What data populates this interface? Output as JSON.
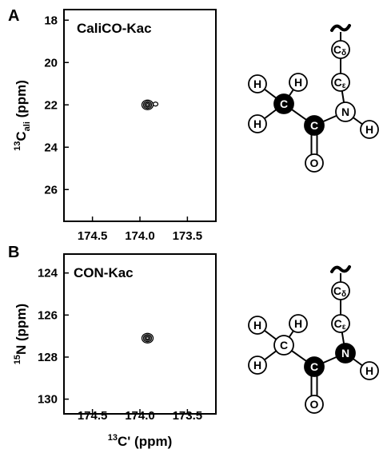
{
  "chart_data": [
    {
      "type": "contour",
      "panel": "A",
      "title": "CaliCO-Kac",
      "xlabel": "",
      "ylabel": {
        "sup": "13",
        "main": "C",
        "sub": "ali",
        "unit": "(ppm)"
      },
      "xlim": [
        174.8,
        173.2
      ],
      "ylim": [
        17.5,
        27.5
      ],
      "xticks": [
        "174.5",
        "174.0",
        "173.5"
      ],
      "xtick_values": [
        174.5,
        174.0,
        173.5
      ],
      "yticks": [
        "18",
        "20",
        "22",
        "24",
        "26"
      ],
      "ytick_values": [
        18,
        20,
        22,
        24,
        26
      ],
      "peaks": [
        {
          "x": 173.92,
          "y": 22.0
        }
      ],
      "highlighted_atoms": [
        "C_methyl",
        "C_carbonyl"
      ]
    },
    {
      "type": "contour",
      "panel": "B",
      "title": "CON-Kac",
      "xlabel": {
        "sup": "13",
        "main": "C' (ppm)"
      },
      "ylabel": {
        "sup": "15",
        "main": "N (ppm)"
      },
      "xlim": [
        174.8,
        173.2
      ],
      "ylim": [
        123.1,
        130.7
      ],
      "xticks": [
        "174.5",
        "174.0",
        "173.5"
      ],
      "xtick_values": [
        174.5,
        174.0,
        173.5
      ],
      "yticks": [
        "124",
        "126",
        "128",
        "130"
      ],
      "ytick_values": [
        124,
        126,
        128,
        130
      ],
      "peaks": [
        {
          "x": 173.92,
          "y": 127.1
        }
      ],
      "highlighted_atoms": [
        "C_carbonyl",
        "N"
      ]
    }
  ],
  "molecule": {
    "atoms": {
      "H": "H",
      "C": "C",
      "O": "O",
      "N": "N",
      "C_delta": {
        "main": "C",
        "sub": "δ"
      },
      "C_epsilon": {
        "main": "C",
        "sub": "ε"
      }
    },
    "squiggle": "~"
  },
  "colors": {
    "ink": "#000000",
    "background": "#ffffff",
    "highlight": "#000000"
  }
}
